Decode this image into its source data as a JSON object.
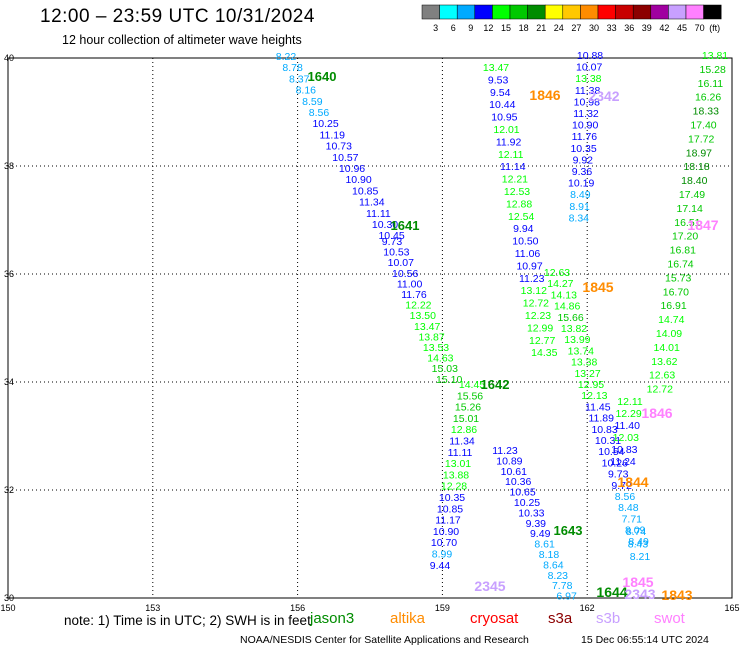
{
  "header": {
    "title": "12:00 – 23:59 UTC 10/31/2024",
    "subtitle": "12 hour collection of altimeter wave heights"
  },
  "legend": {
    "unit": "(ft)",
    "bins": [
      {
        "label": "3",
        "color": "#808080"
      },
      {
        "label": "6",
        "color": "#00ffff"
      },
      {
        "label": "9",
        "color": "#00aaff"
      },
      {
        "label": "12",
        "color": "#0000ff"
      },
      {
        "label": "15",
        "color": "#00ff00"
      },
      {
        "label": "18",
        "color": "#00c800"
      },
      {
        "label": "21",
        "color": "#008c00"
      },
      {
        "label": "24",
        "color": "#ffff00"
      },
      {
        "label": "27",
        "color": "#ffc800"
      },
      {
        "label": "30",
        "color": "#ff8c00"
      },
      {
        "label": "33",
        "color": "#ff0000"
      },
      {
        "label": "36",
        "color": "#c80000"
      },
      {
        "label": "39",
        "color": "#8c0000"
      },
      {
        "label": "42",
        "color": "#a000a0"
      },
      {
        "label": "45",
        "color": "#c8a0ff"
      },
      {
        "label": "70",
        "color": "#ff80ff"
      },
      {
        "label": "",
        "color": "#000000"
      }
    ]
  },
  "map": {
    "lon_labels": [
      "150",
      "153",
      "156",
      "159",
      "162",
      "165"
    ],
    "lat_labels": [
      "40",
      "38",
      "36",
      "34",
      "32",
      "30"
    ],
    "grid": true
  },
  "tracks": [
    {
      "hour": "1640",
      "hour_color": "#008c00",
      "points": [
        {
          "v": "8.22",
          "c": "#00aaff"
        },
        {
          "v": "8.78",
          "c": "#00aaff"
        },
        {
          "v": "8.37",
          "c": "#00aaff"
        },
        {
          "v": "8.16",
          "c": "#00aaff"
        },
        {
          "v": "8.59",
          "c": "#00aaff"
        },
        {
          "v": "8.56",
          "c": "#00aaff"
        },
        {
          "v": "10.25",
          "c": "#0000ff"
        },
        {
          "v": "11.19",
          "c": "#0000ff"
        },
        {
          "v": "10.73",
          "c": "#0000ff"
        },
        {
          "v": "10.57",
          "c": "#0000ff"
        },
        {
          "v": "10.96",
          "c": "#0000ff"
        },
        {
          "v": "10.90",
          "c": "#0000ff"
        },
        {
          "v": "10.85",
          "c": "#0000ff"
        },
        {
          "v": "11.34",
          "c": "#0000ff"
        },
        {
          "v": "11.11",
          "c": "#0000ff"
        },
        {
          "v": "10.30",
          "c": "#0000ff"
        },
        {
          "v": "10.45",
          "c": "#0000ff"
        }
      ]
    },
    {
      "hour": "1641",
      "hour_color": "#008c00",
      "points": [
        {
          "v": "9.73",
          "c": "#0000ff"
        },
        {
          "v": "10.53",
          "c": "#0000ff"
        },
        {
          "v": "10.07",
          "c": "#0000ff"
        },
        {
          "v": "10.56",
          "c": "#0000ff"
        },
        {
          "v": "11.00",
          "c": "#0000ff"
        },
        {
          "v": "11.76",
          "c": "#0000ff"
        },
        {
          "v": "12.22",
          "c": "#00ff00"
        },
        {
          "v": "13.50",
          "c": "#00ff00"
        },
        {
          "v": "13.47",
          "c": "#00ff00"
        },
        {
          "v": "13.87",
          "c": "#00ff00"
        },
        {
          "v": "13.53",
          "c": "#00ff00"
        },
        {
          "v": "14.63",
          "c": "#00ff00"
        },
        {
          "v": "15.03",
          "c": "#00c800"
        },
        {
          "v": "15.10",
          "c": "#00c800"
        }
      ]
    },
    {
      "hour": "1642",
      "hour_color": "#008c00",
      "points": [
        {
          "v": "14.45",
          "c": "#00ff00"
        },
        {
          "v": "15.56",
          "c": "#00c800"
        },
        {
          "v": "15.26",
          "c": "#00c800"
        },
        {
          "v": "15.01",
          "c": "#00c800"
        },
        {
          "v": "12.86",
          "c": "#00ff00"
        },
        {
          "v": "11.34",
          "c": "#0000ff"
        },
        {
          "v": "11.11",
          "c": "#0000ff"
        },
        {
          "v": "13.01",
          "c": "#00ff00"
        },
        {
          "v": "13.88",
          "c": "#00ff00"
        },
        {
          "v": "12.28",
          "c": "#00ff00"
        },
        {
          "v": "10.35",
          "c": "#0000ff"
        },
        {
          "v": "10.85",
          "c": "#0000ff"
        },
        {
          "v": "11.17",
          "c": "#0000ff"
        },
        {
          "v": "10.90",
          "c": "#0000ff"
        },
        {
          "v": "10.70",
          "c": "#0000ff"
        },
        {
          "v": "8.99",
          "c": "#00aaff"
        },
        {
          "v": "9.44",
          "c": "#0000ff"
        }
      ]
    },
    {
      "hour": "1643",
      "hour_color": "#008c00",
      "points": [
        {
          "v": "11.23",
          "c": "#0000ff"
        },
        {
          "v": "10.89",
          "c": "#0000ff"
        },
        {
          "v": "10.61",
          "c": "#0000ff"
        },
        {
          "v": "10.36",
          "c": "#0000ff"
        },
        {
          "v": "10.65",
          "c": "#0000ff"
        },
        {
          "v": "10.25",
          "c": "#0000ff"
        },
        {
          "v": "10.33",
          "c": "#0000ff"
        },
        {
          "v": "9.39",
          "c": "#0000ff"
        },
        {
          "v": "9.49",
          "c": "#0000ff"
        },
        {
          "v": "8.61",
          "c": "#00aaff"
        },
        {
          "v": "8.18",
          "c": "#00aaff"
        },
        {
          "v": "8.64",
          "c": "#00aaff"
        },
        {
          "v": "8.23",
          "c": "#00aaff"
        },
        {
          "v": "7.78",
          "c": "#00aaff"
        },
        {
          "v": "6.97",
          "c": "#00aaff"
        }
      ]
    },
    {
      "hour": "1846",
      "hour_color": "#ff8c00",
      "points": [
        {
          "v": "13.47",
          "c": "#00ff00"
        },
        {
          "v": "9.53",
          "c": "#0000ff"
        },
        {
          "v": "9.54",
          "c": "#0000ff"
        },
        {
          "v": "10.44",
          "c": "#0000ff"
        },
        {
          "v": "10.95",
          "c": "#0000ff"
        },
        {
          "v": "12.01",
          "c": "#00ff00"
        },
        {
          "v": "11.92",
          "c": "#0000ff"
        },
        {
          "v": "12.11",
          "c": "#00ff00"
        },
        {
          "v": "11.14",
          "c": "#0000ff"
        },
        {
          "v": "12.21",
          "c": "#00ff00"
        },
        {
          "v": "12.53",
          "c": "#00ff00"
        },
        {
          "v": "12.88",
          "c": "#00ff00"
        },
        {
          "v": "12.54",
          "c": "#00ff00"
        },
        {
          "v": "9.94",
          "c": "#0000ff"
        },
        {
          "v": "10.50",
          "c": "#0000ff"
        },
        {
          "v": "11.06",
          "c": "#0000ff"
        },
        {
          "v": "10.97",
          "c": "#0000ff"
        },
        {
          "v": "11.23",
          "c": "#0000ff"
        },
        {
          "v": "13.12",
          "c": "#00ff00"
        },
        {
          "v": "12.72",
          "c": "#00ff00"
        },
        {
          "v": "12.23",
          "c": "#00ff00"
        },
        {
          "v": "12.99",
          "c": "#00ff00"
        },
        {
          "v": "12.77",
          "c": "#00ff00"
        },
        {
          "v": "14.35",
          "c": "#00ff00"
        }
      ]
    },
    {
      "hour": "2342",
      "hour_color": "#c8a0ff",
      "points": [
        {
          "v": "10.88",
          "c": "#0000ff"
        },
        {
          "v": "10.07",
          "c": "#0000ff"
        },
        {
          "v": "13.38",
          "c": "#00ff00"
        },
        {
          "v": "11.38",
          "c": "#0000ff"
        },
        {
          "v": "10.98",
          "c": "#0000ff"
        },
        {
          "v": "11.32",
          "c": "#0000ff"
        },
        {
          "v": "10.90",
          "c": "#0000ff"
        },
        {
          "v": "11.76",
          "c": "#0000ff"
        },
        {
          "v": "10.35",
          "c": "#0000ff"
        },
        {
          "v": "9.92",
          "c": "#0000ff"
        },
        {
          "v": "9.36",
          "c": "#0000ff"
        },
        {
          "v": "10.19",
          "c": "#0000ff"
        },
        {
          "v": "8.49",
          "c": "#00aaff"
        },
        {
          "v": "8.91",
          "c": "#00aaff"
        },
        {
          "v": "8.34",
          "c": "#00aaff"
        }
      ]
    },
    {
      "hour": "1845",
      "hour_color": "#ff8c00",
      "points": [
        {
          "v": "12.63",
          "c": "#00ff00"
        },
        {
          "v": "14.27",
          "c": "#00ff00"
        },
        {
          "v": "14.13",
          "c": "#00ff00"
        },
        {
          "v": "14.86",
          "c": "#00ff00"
        },
        {
          "v": "15.66",
          "c": "#00c800"
        },
        {
          "v": "13.82",
          "c": "#00ff00"
        },
        {
          "v": "13.99",
          "c": "#00ff00"
        },
        {
          "v": "13.74",
          "c": "#00ff00"
        },
        {
          "v": "13.38",
          "c": "#00ff00"
        },
        {
          "v": "13.27",
          "c": "#00ff00"
        },
        {
          "v": "12.95",
          "c": "#00ff00"
        },
        {
          "v": "12.13",
          "c": "#00ff00"
        },
        {
          "v": "11.45",
          "c": "#0000ff"
        },
        {
          "v": "11.89",
          "c": "#0000ff"
        },
        {
          "v": "10.83",
          "c": "#0000ff"
        },
        {
          "v": "10.31",
          "c": "#0000ff"
        },
        {
          "v": "10.54",
          "c": "#0000ff"
        },
        {
          "v": "10.26",
          "c": "#0000ff"
        },
        {
          "v": "9.73",
          "c": "#0000ff"
        },
        {
          "v": "9.72",
          "c": "#0000ff"
        },
        {
          "v": "8.56",
          "c": "#00aaff"
        },
        {
          "v": "8.48",
          "c": "#00aaff"
        },
        {
          "v": "7.71",
          "c": "#00aaff"
        },
        {
          "v": "8.09",
          "c": "#00aaff"
        },
        {
          "v": "8.49",
          "c": "#00aaff"
        }
      ]
    },
    {
      "hour": "1847",
      "hour_color": "#ff80ff",
      "points": [
        {
          "v": "13.81",
          "c": "#00ff00"
        },
        {
          "v": "15.28",
          "c": "#00c800"
        },
        {
          "v": "16.11",
          "c": "#00c800"
        },
        {
          "v": "16.26",
          "c": "#00c800"
        },
        {
          "v": "18.33",
          "c": "#008c00"
        },
        {
          "v": "17.40",
          "c": "#00c800"
        },
        {
          "v": "17.72",
          "c": "#00c800"
        },
        {
          "v": "18.97",
          "c": "#008c00"
        },
        {
          "v": "18.18",
          "c": "#008c00"
        },
        {
          "v": "18.40",
          "c": "#008c00"
        },
        {
          "v": "17.49",
          "c": "#00c800"
        },
        {
          "v": "17.14",
          "c": "#00c800"
        },
        {
          "v": "16.51",
          "c": "#00c800"
        },
        {
          "v": "17.20",
          "c": "#00c800"
        },
        {
          "v": "16.81",
          "c": "#00c800"
        },
        {
          "v": "16.74",
          "c": "#00c800"
        },
        {
          "v": "15.73",
          "c": "#00c800"
        },
        {
          "v": "16.70",
          "c": "#00c800"
        },
        {
          "v": "16.91",
          "c": "#00c800"
        },
        {
          "v": "14.74",
          "c": "#00ff00"
        },
        {
          "v": "14.09",
          "c": "#00ff00"
        },
        {
          "v": "14.01",
          "c": "#00ff00"
        },
        {
          "v": "13.62",
          "c": "#00ff00"
        },
        {
          "v": "12.63",
          "c": "#00ff00"
        },
        {
          "v": "12.72",
          "c": "#00ff00"
        }
      ]
    },
    {
      "hour": "1846",
      "hour_color": "#ff80ff",
      "points": [
        {
          "v": "12.11",
          "c": "#00ff00"
        },
        {
          "v": "12.29",
          "c": "#00ff00"
        },
        {
          "v": "11.40",
          "c": "#0000ff"
        },
        {
          "v": "12.03",
          "c": "#00ff00"
        },
        {
          "v": "10.83",
          "c": "#0000ff"
        },
        {
          "v": "11.24",
          "c": "#0000ff"
        }
      ]
    },
    {
      "hour": "1844",
      "hour_color": "#ff8c00",
      "points": [
        {
          "v": "8.74",
          "c": "#00aaff"
        },
        {
          "v": "8.43",
          "c": "#00aaff"
        },
        {
          "v": "8.21",
          "c": "#00aaff"
        }
      ]
    },
    {
      "hour": "2345",
      "hour_color": "#c8a0ff",
      "points": []
    },
    {
      "hour": "1644",
      "hour_color": "#008c00",
      "points": []
    },
    {
      "hour": "1843",
      "hour_color": "#ff8c00",
      "points": []
    },
    {
      "hour": "1845",
      "hour_color": "#ff80ff",
      "points": []
    },
    {
      "hour": "2343",
      "hour_color": "#c8a0ff",
      "points": []
    }
  ],
  "satellites": [
    {
      "name": "jason3",
      "color": "#008c00"
    },
    {
      "name": "altika",
      "color": "#ff8c00"
    },
    {
      "name": "cryosat",
      "color": "#ff0000"
    },
    {
      "name": "s3a",
      "color": "#8c0000"
    },
    {
      "name": "s3b",
      "color": "#c8a0ff"
    },
    {
      "name": "swot",
      "color": "#ff80ff"
    }
  ],
  "footer": {
    "note": "note:  1) Time is in UTC; 2) SWH is in feet",
    "credit": "NOAA/NESDIS Center for Satellite Applications and Research",
    "generated": "15 Dec 06:55:14 UTC 2024"
  }
}
